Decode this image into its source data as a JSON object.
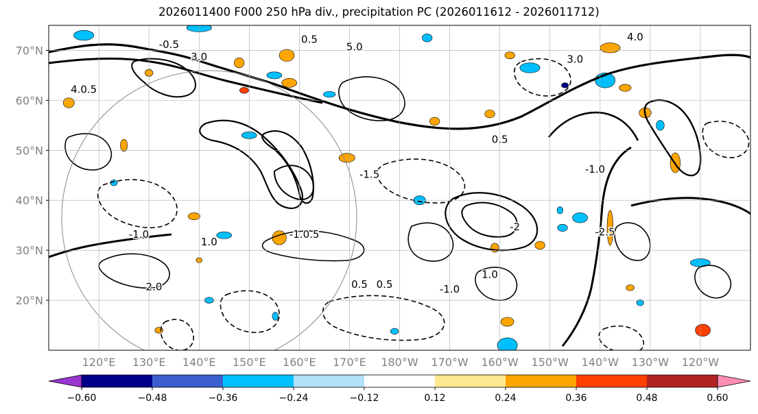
{
  "title": "2026011400 F000 250 hPa div., precipitation PC (2026011612 - 2026011712)",
  "chart_data": {
    "type": "contour_map",
    "title": "2026011400 F000 250 hPa div., precipitation PC (2026011612 - 2026011712)",
    "projection": "equirectangular",
    "lon_range": [
      110,
      250
    ],
    "lat_range": [
      10,
      75
    ],
    "lat_ticks": [
      {
        "lat": 70,
        "label": "70°N"
      },
      {
        "lat": 60,
        "label": "60°N"
      },
      {
        "lat": 50,
        "label": "50°N"
      },
      {
        "lat": 40,
        "label": "40°N"
      },
      {
        "lat": 30,
        "label": "30°N"
      },
      {
        "lat": 20,
        "label": "20°N"
      }
    ],
    "lon_ticks": [
      {
        "lon": 120,
        "label": "120°E"
      },
      {
        "lon": 130,
        "label": "130°E"
      },
      {
        "lon": 140,
        "label": "140°E"
      },
      {
        "lon": 150,
        "label": "150°E"
      },
      {
        "lon": 160,
        "label": "160°E"
      },
      {
        "lon": 170,
        "label": "170°E"
      },
      {
        "lon": 180,
        "label": "180°W"
      },
      {
        "lon": 190,
        "label": "170°W"
      },
      {
        "lon": 200,
        "label": "160°W"
      },
      {
        "lon": 210,
        "label": "150°W"
      },
      {
        "lon": 220,
        "label": "140°W"
      },
      {
        "lon": 230,
        "label": "130°W"
      },
      {
        "lon": 240,
        "label": "120°W"
      }
    ],
    "grid": true,
    "contour_labels": [
      {
        "lon": 134,
        "lat": 70.5,
        "text": "-0.5"
      },
      {
        "lon": 117,
        "lat": 61.5,
        "text": "4.0.5"
      },
      {
        "lon": 161,
        "lat": 32.5,
        "text": "-1.0.5"
      },
      {
        "lon": 172,
        "lat": 22.5,
        "text": "0.5"
      },
      {
        "lon": 177,
        "lat": 22.5,
        "text": "0.5"
      },
      {
        "lon": 190,
        "lat": 21.5,
        "text": "-1.0"
      },
      {
        "lon": 200,
        "lat": 51.5,
        "text": "0.5"
      },
      {
        "lon": 215,
        "lat": 67.5,
        "text": "3.0"
      },
      {
        "lon": 162,
        "lat": 71.5,
        "text": "0.5"
      },
      {
        "lon": 171,
        "lat": 70.0,
        "text": "5.0"
      },
      {
        "lon": 227,
        "lat": 72.0,
        "text": "4.0"
      },
      {
        "lon": 140,
        "lat": 68.0,
        "text": "3.0"
      },
      {
        "lon": 128,
        "lat": 32.5,
        "text": "-1.0"
      },
      {
        "lon": 142,
        "lat": 31.0,
        "text": "1.0"
      },
      {
        "lon": 131,
        "lat": 22.0,
        "text": "2.0"
      },
      {
        "lon": 221,
        "lat": 33.0,
        "text": "-2.5"
      },
      {
        "lon": 219,
        "lat": 45.5,
        "text": "-1.0"
      },
      {
        "lon": 198,
        "lat": 24.5,
        "text": "1.0"
      },
      {
        "lon": 203,
        "lat": 34.0,
        "text": "-2"
      },
      {
        "lon": 174,
        "lat": 44.5,
        "text": "-1.5"
      }
    ],
    "colorbar": {
      "orientation": "horizontal",
      "extend": "both",
      "bounds": [
        -0.6,
        -0.48,
        -0.36,
        -0.24,
        -0.12,
        0.12,
        0.24,
        0.36,
        0.48,
        0.6
      ],
      "tick_labels": [
        "−0.60",
        "−0.48",
        "−0.36",
        "−0.24",
        "−0.12",
        "0.12",
        "0.24",
        "0.36",
        "0.48",
        "0.60"
      ],
      "colors": [
        "#9a35d0",
        "#00008b",
        "#3a5fcd",
        "#00bfff",
        "#b2e0f8",
        "#ffffff",
        "#ffe990",
        "#ffa500",
        "#ff4000",
        "#b22222",
        "#ff8cb4"
      ]
    },
    "shaded_regions": [
      {
        "lon": 156,
        "lat": 32.5,
        "rx": 1.4,
        "ry": 1.4,
        "value": 0.3
      },
      {
        "lon": 201.5,
        "lat": 15.7,
        "rx": 1.3,
        "ry": 0.9,
        "value": 0.3
      },
      {
        "lon": 158,
        "lat": 63.5,
        "rx": 1.5,
        "ry": 0.9,
        "value": 0.35
      },
      {
        "lon": 169.5,
        "lat": 48.5,
        "rx": 1.6,
        "ry": 0.9,
        "value": 0.3
      },
      {
        "lon": 199,
        "lat": 30.5,
        "rx": 0.8,
        "ry": 0.9,
        "value": 0.3
      },
      {
        "lon": 208,
        "lat": 31.0,
        "rx": 1.0,
        "ry": 0.8,
        "value": 0.3
      },
      {
        "lon": 229,
        "lat": 57.5,
        "rx": 1.2,
        "ry": 1.0,
        "value": 0.3
      },
      {
        "lon": 235,
        "lat": 47.5,
        "rx": 1.0,
        "ry": 2.0,
        "value": 0.3
      },
      {
        "lon": 222,
        "lat": 34.5,
        "rx": 0.6,
        "ry": 3.5,
        "value": 0.3
      },
      {
        "lon": 139,
        "lat": 36.8,
        "rx": 1.2,
        "ry": 0.7,
        "value": 0.3
      },
      {
        "lon": 187,
        "lat": 55.8,
        "rx": 1.0,
        "ry": 0.8,
        "value": 0.3
      },
      {
        "lon": 198,
        "lat": 57.3,
        "rx": 1.0,
        "ry": 0.8,
        "value": 0.3
      },
      {
        "lon": 225,
        "lat": 62.5,
        "rx": 1.2,
        "ry": 0.7,
        "value": 0.3
      },
      {
        "lon": 240.5,
        "lat": 14.0,
        "rx": 1.5,
        "ry": 1.2,
        "value": 0.45
      },
      {
        "lon": 125,
        "lat": 51.0,
        "rx": 0.7,
        "ry": 1.2,
        "value": 0.3
      },
      {
        "lon": 148,
        "lat": 67.5,
        "rx": 1.0,
        "ry": 1.0,
        "value": 0.3
      },
      {
        "lon": 157.5,
        "lat": 69.0,
        "rx": 1.5,
        "ry": 1.2,
        "value": 0.3
      },
      {
        "lon": 222,
        "lat": 70.5,
        "rx": 2.0,
        "ry": 1.0,
        "value": 0.3
      },
      {
        "lon": 202,
        "lat": 69.0,
        "rx": 1.0,
        "ry": 0.7,
        "value": 0.3
      },
      {
        "lon": 226,
        "lat": 22.5,
        "rx": 0.8,
        "ry": 0.6,
        "value": 0.3
      },
      {
        "lon": 149,
        "lat": 62.0,
        "rx": 0.9,
        "ry": 0.6,
        "value": 0.4
      },
      {
        "lon": 140,
        "lat": 28.0,
        "rx": 0.6,
        "ry": 0.5,
        "value": 0.25
      },
      {
        "lon": 130,
        "lat": 65.5,
        "rx": 0.8,
        "ry": 0.7,
        "value": 0.3
      },
      {
        "lon": 114,
        "lat": 59.5,
        "rx": 1.1,
        "ry": 1.0,
        "value": 0.3
      },
      {
        "lon": 132,
        "lat": 14.0,
        "rx": 0.8,
        "ry": 0.6,
        "value": 0.3
      },
      {
        "lon": 140,
        "lat": 74.5,
        "rx": 2.5,
        "ry": 0.8,
        "value": -0.3
      },
      {
        "lon": 117,
        "lat": 73.0,
        "rx": 2.0,
        "ry": 1.0,
        "value": -0.3
      },
      {
        "lon": 201.5,
        "lat": 11.0,
        "rx": 2.0,
        "ry": 1.5,
        "value": -0.3
      },
      {
        "lon": 179,
        "lat": 13.8,
        "rx": 0.8,
        "ry": 0.6,
        "value": -0.3
      },
      {
        "lon": 184,
        "lat": 40.0,
        "rx": 1.2,
        "ry": 0.9,
        "value": -0.3
      },
      {
        "lon": 206,
        "lat": 66.5,
        "rx": 2.0,
        "ry": 1.0,
        "value": -0.3
      },
      {
        "lon": 221,
        "lat": 64.0,
        "rx": 2.0,
        "ry": 1.5,
        "value": -0.3
      },
      {
        "lon": 216,
        "lat": 36.5,
        "rx": 1.5,
        "ry": 1.0,
        "value": -0.3
      },
      {
        "lon": 212.5,
        "lat": 34.5,
        "rx": 1.0,
        "ry": 0.7,
        "value": -0.3
      },
      {
        "lon": 142,
        "lat": 20.0,
        "rx": 0.9,
        "ry": 0.6,
        "value": -0.3
      },
      {
        "lon": 166,
        "lat": 61.2,
        "rx": 1.2,
        "ry": 0.6,
        "value": -0.3
      },
      {
        "lon": 155,
        "lat": 65.0,
        "rx": 1.5,
        "ry": 0.7,
        "value": -0.3
      },
      {
        "lon": 150,
        "lat": 53.0,
        "rx": 1.5,
        "ry": 0.7,
        "value": -0.3
      },
      {
        "lon": 145,
        "lat": 33.0,
        "rx": 1.5,
        "ry": 0.7,
        "value": -0.3
      },
      {
        "lon": 232,
        "lat": 55.0,
        "rx": 0.8,
        "ry": 1.0,
        "value": -0.3
      },
      {
        "lon": 240,
        "lat": 27.5,
        "rx": 2.0,
        "ry": 0.8,
        "value": -0.3
      },
      {
        "lon": 228,
        "lat": 19.5,
        "rx": 0.7,
        "ry": 0.6,
        "value": -0.3
      },
      {
        "lon": 213,
        "lat": 63.0,
        "rx": 0.7,
        "ry": 0.5,
        "value": -0.6
      },
      {
        "lon": 155.2,
        "lat": 16.8,
        "rx": 0.6,
        "ry": 0.8,
        "value": -0.3
      },
      {
        "lon": 212,
        "lat": 38.0,
        "rx": 0.6,
        "ry": 0.7,
        "value": -0.3
      },
      {
        "lon": 123,
        "lat": 43.5,
        "rx": 0.7,
        "ry": 0.6,
        "value": -0.3
      },
      {
        "lon": 185.5,
        "lat": 72.5,
        "rx": 1.0,
        "ry": 0.8,
        "value": -0.3
      }
    ]
  }
}
